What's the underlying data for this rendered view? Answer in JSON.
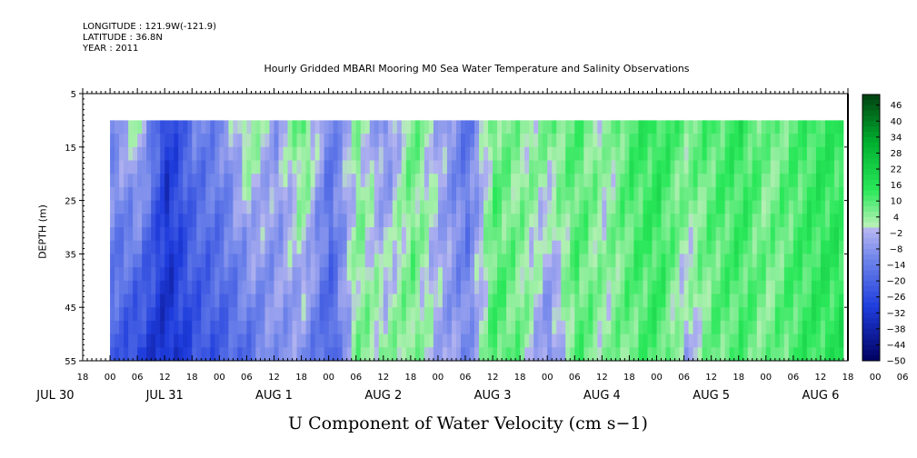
{
  "meta": {
    "longitude": "LONGITUDE : 121.9W(-121.9)",
    "latitude": "LATITUDE : 36.8N",
    "year": "YEAR : 2011"
  },
  "chart_data": {
    "type": "heatmap",
    "title": "Hourly Gridded MBARI Mooring M0 Sea Water Temperature and Salinity Observations",
    "xlabel": "U Component of Water Velocity (cm s−1)",
    "ylabel": "DEPTH (m)",
    "x_hour_ticks": [
      "18",
      "00",
      "06",
      "12",
      "18",
      "00",
      "06",
      "12",
      "18",
      "00",
      "06",
      "12",
      "18",
      "00",
      "06",
      "12",
      "18",
      "00",
      "06",
      "12",
      "18",
      "00",
      "06",
      "12",
      "18",
      "00",
      "06",
      "12",
      "18",
      "00",
      "06",
      "12",
      "18"
    ],
    "x_day_labels": [
      "JUL 30",
      "JUL 31",
      "AUG  1",
      "AUG  2",
      "AUG  3",
      "AUG  4",
      "AUG  5",
      "AUG  6"
    ],
    "x_range_hours": [
      -6,
      162
    ],
    "y_ticks": [
      "5",
      "15",
      "25",
      "35",
      "45",
      "55"
    ],
    "ylim": [
      55,
      5
    ],
    "data_depth_range": [
      10,
      55
    ],
    "data_time_range_hours": [
      0,
      161
    ],
    "colorbar_labels": [
      "46",
      "40",
      "34",
      "28",
      "22",
      "16",
      "10",
      "4",
      "−2",
      "−8",
      "−14",
      "−20",
      "−26",
      "−32",
      "−38",
      "−44",
      "−50"
    ],
    "colorbar_range": [
      -50,
      50
    ],
    "colors": {
      "min": "#000060",
      "neg_strong": "#1e3cdc",
      "neg": "#6e84ea",
      "neg_light": "#b4b4f0",
      "pos_light": "#b4f0b4",
      "pos": "#2ae85a",
      "pos_strong": "#00b030",
      "max": "#004010"
    },
    "hourly_u_profile": {
      "hours": [
        0,
        6,
        12,
        18,
        24,
        30,
        36,
        42,
        48,
        54,
        60,
        66,
        72,
        78,
        84,
        90,
        96,
        102,
        108,
        114,
        120,
        126,
        132,
        138,
        144,
        150,
        156,
        161
      ],
      "surface_u": [
        -8,
        2,
        -30,
        -14,
        -10,
        6,
        -6,
        10,
        -14,
        4,
        -10,
        8,
        -4,
        -16,
        8,
        4,
        6,
        10,
        2,
        12,
        14,
        8,
        10,
        14,
        6,
        10,
        14,
        12
      ],
      "bottom_u": [
        -20,
        -30,
        -34,
        -26,
        -22,
        -18,
        -8,
        -10,
        -22,
        6,
        4,
        6,
        -4,
        -10,
        12,
        6,
        -12,
        10,
        4,
        8,
        12,
        -4,
        8,
        10,
        6,
        12,
        14,
        16
      ]
    }
  }
}
